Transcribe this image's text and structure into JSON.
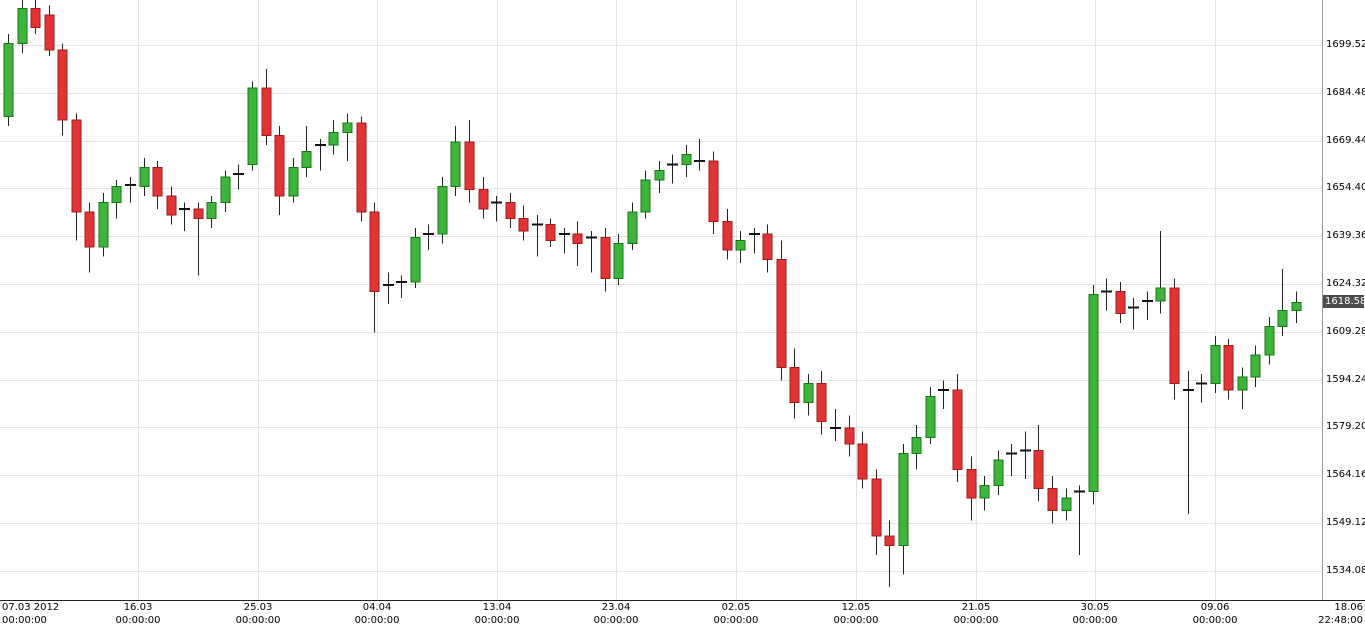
{
  "chart_data": {
    "type": "candlestick",
    "title": "",
    "legend": "none",
    "grid": true,
    "last_price": 1618.58,
    "last_price_label": "1618.58",
    "colors": {
      "up_fill": "#3db53d",
      "up_stroke": "#157815",
      "down_fill": "#e23434",
      "down_stroke": "#9c1c1c",
      "wick": "#222222",
      "doji": "#111111",
      "grid": "#e3e3e3",
      "axis_line": "#9a9a9a",
      "badge_bg": "#4d4d4d",
      "badge_text": "#ffffff"
    },
    "y_axis": {
      "min": 1524.92,
      "max": 1713.68,
      "ticks": [
        1699.52,
        1684.48,
        1669.44,
        1654.4,
        1639.36,
        1624.32,
        1609.28,
        1594.24,
        1579.2,
        1564.16,
        1549.12,
        1534.08
      ]
    },
    "x_axis": {
      "ticks": [
        {
          "date": "07.03 2012",
          "time": "00:00:00",
          "frac": 0.004,
          "align": "left",
          "grid": false
        },
        {
          "date": "16.03",
          "time": "00:00:00",
          "frac": 0.1044,
          "align": "center",
          "grid": true
        },
        {
          "date": "25.03",
          "time": "00:00:00",
          "frac": 0.1952,
          "align": "center",
          "grid": true
        },
        {
          "date": "04.04",
          "time": "00:00:00",
          "frac": 0.2852,
          "align": "center",
          "grid": true
        },
        {
          "date": "13.04",
          "time": "00:00:00",
          "frac": 0.376,
          "align": "center",
          "grid": true
        },
        {
          "date": "23.04",
          "time": "00:00:00",
          "frac": 0.466,
          "align": "center",
          "grid": true
        },
        {
          "date": "02.05",
          "time": "00:00:00",
          "frac": 0.5567,
          "align": "center",
          "grid": true
        },
        {
          "date": "12.05",
          "time": "00:00:00",
          "frac": 0.6475,
          "align": "center",
          "grid": true
        },
        {
          "date": "21.05",
          "time": "00:00:00",
          "frac": 0.7383,
          "align": "center",
          "grid": true
        },
        {
          "date": "30.05",
          "time": "00:00:00",
          "frac": 0.8283,
          "align": "center",
          "grid": true
        },
        {
          "date": "09.06",
          "time": "00:00:00",
          "frac": 0.9191,
          "align": "center",
          "grid": true
        },
        {
          "date": "18.06",
          "time": "22:48:00",
          "frac": 1.0,
          "align": "right",
          "grid": false
        }
      ]
    },
    "candles": [
      [
        1677,
        1703,
        1674,
        1700
      ],
      [
        1700,
        1714,
        1697,
        1711
      ],
      [
        1711,
        1714,
        1703,
        1705
      ],
      [
        1709,
        1712,
        1696,
        1698
      ],
      [
        1698,
        1700,
        1671,
        1676
      ],
      [
        1676,
        1678,
        1638,
        1647
      ],
      [
        1647,
        1650,
        1628,
        1636
      ],
      [
        1636,
        1653,
        1633,
        1650
      ],
      [
        1650,
        1657,
        1645,
        1655
      ],
      [
        1655,
        1658,
        1650,
        1655.5
      ],
      [
        1655,
        1664,
        1652,
        1661
      ],
      [
        1661,
        1663,
        1648,
        1652
      ],
      [
        1652,
        1655,
        1643,
        1646
      ],
      [
        1646,
        1650,
        1641,
        1648
      ],
      [
        1648,
        1650,
        1627,
        1645
      ],
      [
        1645,
        1652,
        1642,
        1650
      ],
      [
        1650,
        1660,
        1647,
        1658
      ],
      [
        1658,
        1662,
        1654,
        1659
      ],
      [
        1662,
        1688,
        1660,
        1686
      ],
      [
        1686,
        1692,
        1668,
        1671
      ],
      [
        1671,
        1674,
        1646,
        1652
      ],
      [
        1652,
        1664,
        1650,
        1661
      ],
      [
        1661,
        1674,
        1658,
        1666
      ],
      [
        1666,
        1670,
        1660,
        1668
      ],
      [
        1668,
        1676,
        1665,
        1672
      ],
      [
        1672,
        1678,
        1663,
        1675
      ],
      [
        1675,
        1677,
        1644,
        1647
      ],
      [
        1647,
        1650,
        1609,
        1622
      ],
      [
        1622,
        1628,
        1618,
        1624
      ],
      [
        1624,
        1627,
        1620,
        1625
      ],
      [
        1625,
        1642,
        1623,
        1639
      ],
      [
        1639,
        1643,
        1635,
        1640
      ],
      [
        1640,
        1658,
        1637,
        1655
      ],
      [
        1655,
        1674,
        1652,
        1669
      ],
      [
        1669,
        1676,
        1650,
        1654
      ],
      [
        1654,
        1658,
        1645,
        1648
      ],
      [
        1648,
        1652,
        1644,
        1650
      ],
      [
        1650,
        1653,
        1642,
        1645
      ],
      [
        1645,
        1649,
        1638,
        1641
      ],
      [
        1641,
        1646,
        1633,
        1643
      ],
      [
        1643,
        1645,
        1636,
        1638
      ],
      [
        1638,
        1642,
        1634,
        1640
      ],
      [
        1640,
        1644,
        1630,
        1637
      ],
      [
        1637,
        1641,
        1628,
        1639
      ],
      [
        1639,
        1642,
        1622,
        1626
      ],
      [
        1626,
        1640,
        1624,
        1637
      ],
      [
        1637,
        1650,
        1635,
        1647
      ],
      [
        1647,
        1660,
        1645,
        1657
      ],
      [
        1657,
        1663,
        1653,
        1660
      ],
      [
        1660,
        1665,
        1656,
        1662
      ],
      [
        1662,
        1668,
        1658,
        1665
      ],
      [
        1665,
        1670,
        1660,
        1663
      ],
      [
        1663,
        1666,
        1640,
        1644
      ],
      [
        1644,
        1648,
        1632,
        1635
      ],
      [
        1635,
        1641,
        1631,
        1638
      ],
      [
        1638,
        1642,
        1634,
        1640
      ],
      [
        1640,
        1643,
        1628,
        1632
      ],
      [
        1632,
        1638,
        1594,
        1598
      ],
      [
        1598,
        1604,
        1582,
        1587
      ],
      [
        1587,
        1596,
        1583,
        1593
      ],
      [
        1593,
        1597,
        1577,
        1581
      ],
      [
        1581,
        1585,
        1575,
        1579
      ],
      [
        1579,
        1583,
        1570,
        1574
      ],
      [
        1574,
        1578,
        1560,
        1563
      ],
      [
        1563,
        1566,
        1539,
        1545
      ],
      [
        1545,
        1550,
        1529,
        1542
      ],
      [
        1542,
        1574,
        1533,
        1571
      ],
      [
        1571,
        1580,
        1566,
        1576
      ],
      [
        1576,
        1592,
        1574,
        1589
      ],
      [
        1589,
        1594,
        1585,
        1591
      ],
      [
        1591,
        1596,
        1562,
        1566
      ],
      [
        1566,
        1570,
        1550,
        1557
      ],
      [
        1557,
        1564,
        1553,
        1561
      ],
      [
        1561,
        1572,
        1558,
        1569
      ],
      [
        1569,
        1574,
        1564,
        1571
      ],
      [
        1571,
        1578,
        1563,
        1572
      ],
      [
        1572,
        1580,
        1556,
        1560
      ],
      [
        1560,
        1564,
        1549,
        1553
      ],
      [
        1553,
        1560,
        1550,
        1557
      ],
      [
        1557,
        1561,
        1539,
        1559
      ],
      [
        1559,
        1624,
        1555,
        1621
      ],
      [
        1621,
        1626,
        1616,
        1622
      ],
      [
        1622,
        1625,
        1612,
        1615
      ],
      [
        1615,
        1620,
        1610,
        1617
      ],
      [
        1617,
        1622,
        1613,
        1619
      ],
      [
        1619,
        1641,
        1615,
        1623
      ],
      [
        1623,
        1626,
        1588,
        1593
      ],
      [
        1593,
        1597,
        1552,
        1591
      ],
      [
        1591,
        1596,
        1587,
        1593
      ],
      [
        1593,
        1608,
        1590,
        1605
      ],
      [
        1605,
        1607,
        1588,
        1591
      ],
      [
        1591,
        1598,
        1585,
        1595
      ],
      [
        1595,
        1605,
        1592,
        1602
      ],
      [
        1602,
        1614,
        1599,
        1611
      ],
      [
        1611,
        1629,
        1608,
        1616
      ],
      [
        1616,
        1622,
        1612,
        1618.58
      ]
    ]
  }
}
